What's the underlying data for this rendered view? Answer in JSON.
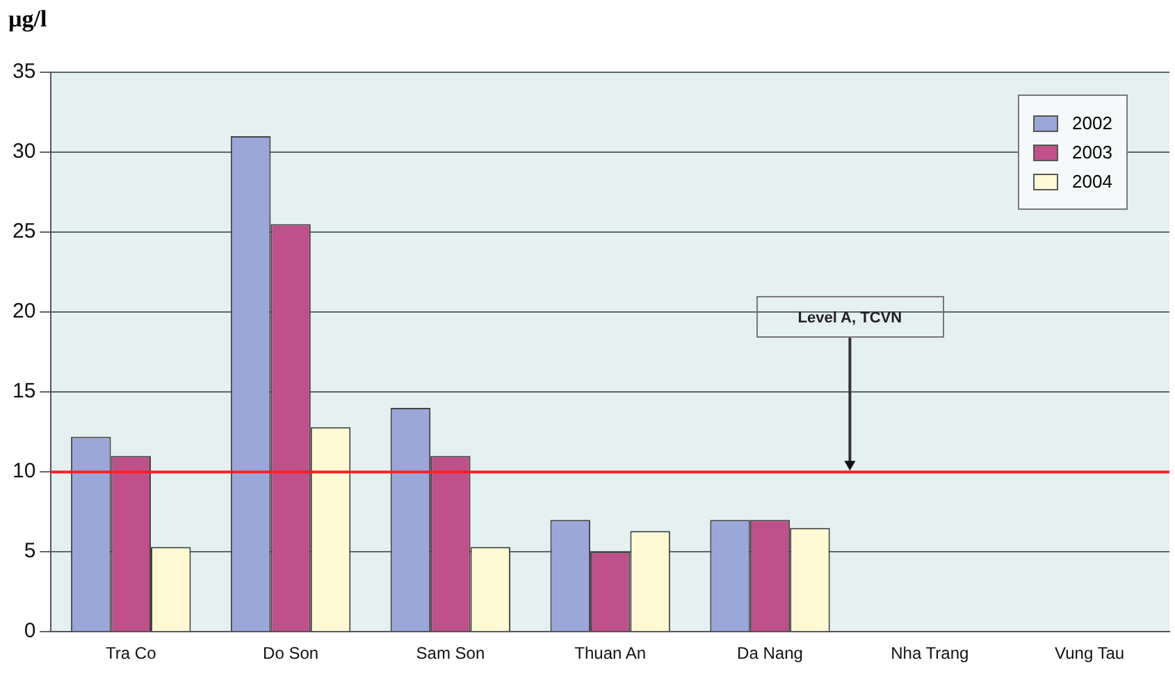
{
  "chart_data": {
    "type": "bar",
    "ylabel": "µg/l",
    "categories": [
      "Tra Co",
      "Do Son",
      "Sam Son",
      "Thuan An",
      "Da Nang",
      "Nha Trang",
      "Vung Tau"
    ],
    "series": [
      {
        "name": "2002",
        "color": "#9ba6d9",
        "values": [
          12.2,
          31,
          14,
          7,
          7,
          null,
          null
        ]
      },
      {
        "name": "2003",
        "color": "#c0508a",
        "values": [
          11,
          25.5,
          11,
          5,
          7,
          null,
          null
        ]
      },
      {
        "name": "2004",
        "color": "#fffad4",
        "values": [
          5.3,
          12.8,
          5.3,
          6.3,
          6.5,
          null,
          null
        ]
      }
    ],
    "ylim": [
      0,
      35
    ],
    "yticks": [
      0,
      5,
      10,
      15,
      20,
      25,
      30,
      35
    ],
    "grid": "y",
    "legend": "top right",
    "ref_lines": [
      {
        "axis": "y",
        "value": 10,
        "label": "Level A, TCVN",
        "color": "#ff2020"
      }
    ]
  }
}
